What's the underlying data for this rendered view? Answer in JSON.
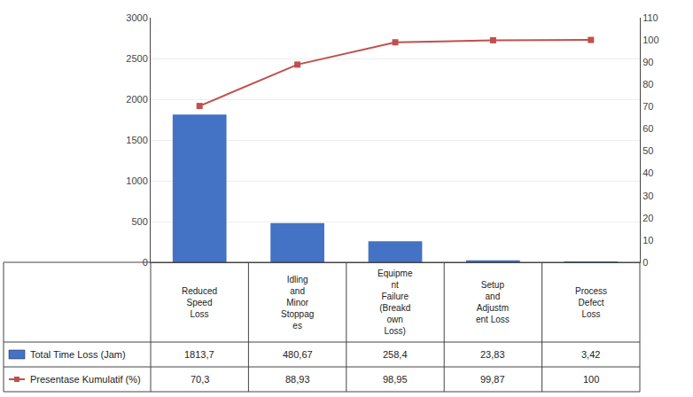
{
  "chart_data": {
    "type": "bar",
    "categories": [
      "Reduced\nSpeed\nLoss",
      "Idling\nand\nMinor\nStoppag\nes",
      "Equipme\nnt\nFailure\n(Breakd\nown\nLoss)",
      "Setup\nand\nAdjustm\nent Loss",
      "Process\nDefect\nLoss"
    ],
    "series": [
      {
        "name": "Total Time Loss (Jam)",
        "type": "bar",
        "color": "#4472C4",
        "values": [
          1813.7,
          480.67,
          258.4,
          23.83,
          3.42
        ],
        "value_labels": [
          "1813,7",
          "480,67",
          "258,4",
          "23,83",
          "3,42"
        ]
      },
      {
        "name": "Presentase Kumulatif (%)",
        "type": "line",
        "axis": "y2",
        "color": "#C0504D",
        "marker": "square",
        "values": [
          70.3,
          88.93,
          98.95,
          99.87,
          100
        ],
        "value_labels": [
          "70,3",
          "88,93",
          "98,95",
          "99,87",
          "100"
        ]
      }
    ],
    "ylim": [
      0,
      3000
    ],
    "yticks": [
      0,
      500,
      1000,
      1500,
      2000,
      2500,
      3000
    ],
    "y2lim": [
      0,
      110
    ],
    "y2ticks": [
      0,
      10,
      20,
      30,
      40,
      50,
      60,
      70,
      80,
      90,
      100,
      110
    ],
    "grid": true
  }
}
